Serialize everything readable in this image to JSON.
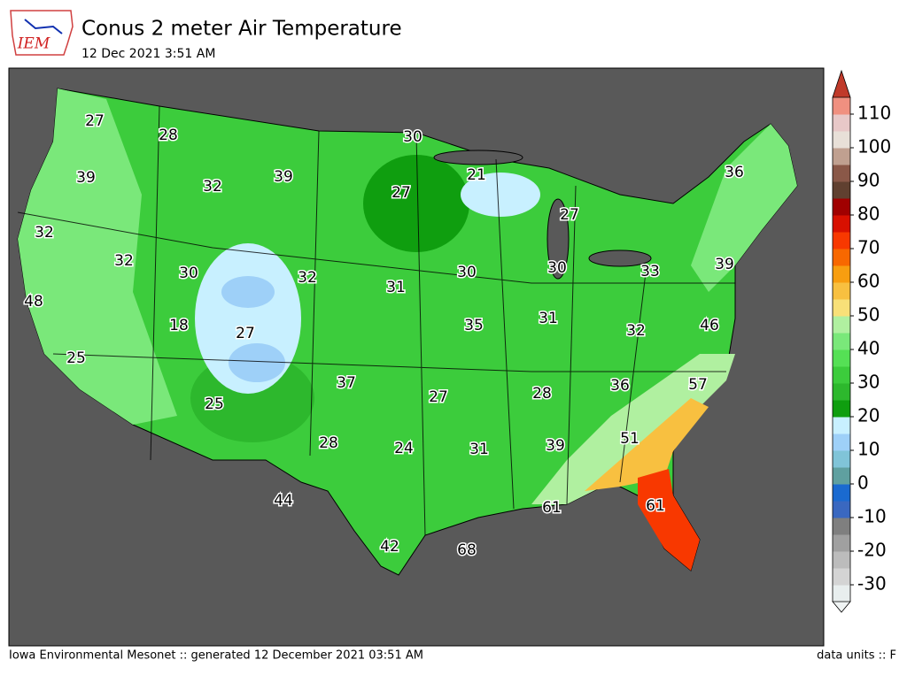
{
  "header": {
    "logo": "IEM",
    "title": "Conus 2 meter Air Temperature",
    "subtitle": "12 Dec 2021 3:51 AM"
  },
  "map": {
    "labels": [
      27,
      28,
      30,
      39,
      32,
      39,
      21,
      27,
      36,
      32,
      27,
      32,
      30,
      32,
      31,
      30,
      30,
      33,
      39,
      48,
      18,
      27,
      35,
      31,
      32,
      46,
      25,
      37,
      27,
      28,
      36,
      57,
      25,
      51,
      28,
      24,
      31,
      39,
      44,
      61,
      61,
      42,
      68
    ]
  },
  "colorbar": {
    "lim": [
      -35,
      115
    ],
    "ticks": [
      -30,
      -20,
      -10,
      0,
      10,
      20,
      30,
      40,
      50,
      60,
      70,
      80,
      90,
      100,
      110
    ],
    "colors": [
      "#e8eeee",
      "#d4d4d4",
      "#bcbcbc",
      "#a0a0a0",
      "#7f7f7f",
      "#3a68c0",
      "#1a6ad0",
      "#5fa0a0",
      "#80c4d8",
      "#9ed0f8",
      "#c8f0ff",
      "#0f9e0f",
      "#2db82d",
      "#3ccc3c",
      "#55e055",
      "#7ae87a",
      "#b0f0a0",
      "#f8e078",
      "#f8c040",
      "#f89e10",
      "#f86800",
      "#f83800",
      "#d81000",
      "#a00000",
      "#604030",
      "#8a5848",
      "#c0a090",
      "#e8e0d8",
      "#e8c8c8",
      "#f09080"
    ],
    "over_color": "#c03a2a",
    "under_color": "#f0f4f4"
  },
  "footer": {
    "left": "Iowa Environmental Mesonet :: generated 12 December 2021 03:51 AM",
    "right": "data units :: F"
  }
}
